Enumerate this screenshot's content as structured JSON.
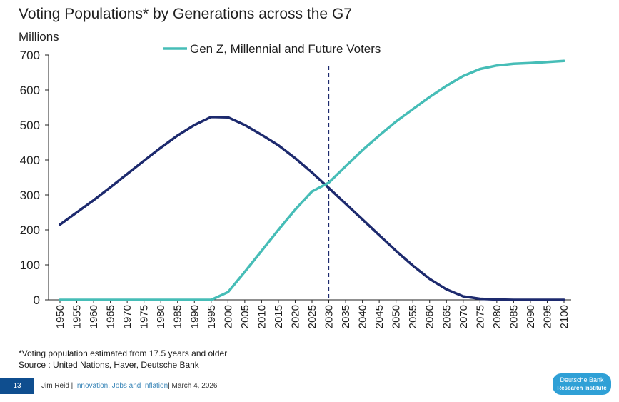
{
  "chart_data": {
    "type": "line",
    "title": "Voting Populations* by Generations across the G7",
    "ylabel": "Millions",
    "xlabel": "",
    "ylim": [
      0,
      700
    ],
    "yticks": [
      0,
      100,
      200,
      300,
      400,
      500,
      600,
      700
    ],
    "xlim": [
      1950,
      2100
    ],
    "xticks": [
      1950,
      1955,
      1960,
      1965,
      1970,
      1975,
      1980,
      1985,
      1990,
      1995,
      2000,
      2005,
      2010,
      2015,
      2020,
      2025,
      2030,
      2035,
      2040,
      2045,
      2050,
      2055,
      2060,
      2065,
      2070,
      2075,
      2080,
      2085,
      2090,
      2095,
      2100
    ],
    "vline_x": 2030,
    "legend": {
      "position": "top-center"
    },
    "series": [
      {
        "name": "",
        "color": "#1d2a6e",
        "x": [
          1950,
          1955,
          1960,
          1965,
          1970,
          1975,
          1980,
          1985,
          1990,
          1995,
          2000,
          2005,
          2010,
          2015,
          2020,
          2025,
          2030,
          2035,
          2040,
          2045,
          2050,
          2055,
          2060,
          2065,
          2070,
          2075,
          2080,
          2085,
          2090,
          2095,
          2100
        ],
        "y": [
          215,
          250,
          285,
          322,
          360,
          398,
          435,
          470,
          500,
          523,
          522,
          500,
          472,
          442,
          405,
          364,
          320,
          275,
          230,
          185,
          140,
          98,
          60,
          30,
          10,
          3,
          1,
          0,
          0,
          0,
          0
        ]
      },
      {
        "name": "Gen Z, Millennial and Future Voters",
        "color": "#46bdb7",
        "x": [
          1950,
          1955,
          1960,
          1965,
          1970,
          1975,
          1980,
          1985,
          1990,
          1995,
          2000,
          2005,
          2010,
          2015,
          2020,
          2025,
          2030,
          2035,
          2040,
          2045,
          2050,
          2055,
          2060,
          2065,
          2070,
          2075,
          2080,
          2085,
          2090,
          2095,
          2100
        ],
        "y": [
          0,
          0,
          0,
          0,
          0,
          0,
          0,
          0,
          0,
          0,
          22,
          80,
          140,
          200,
          258,
          310,
          335,
          382,
          428,
          470,
          510,
          545,
          580,
          612,
          640,
          660,
          670,
          675,
          677,
          680,
          683
        ]
      }
    ]
  },
  "footnotes": {
    "note": "*Voting population estimated from 17.5 years and older",
    "source": "Source : United Nations, Haver, Deutsche Bank"
  },
  "footer": {
    "page_number": "13",
    "author": "Jim Reid",
    "report": "Innovation, Jobs and Inflation",
    "date": "March 4, 2026",
    "logo_line1": "Deutsche Bank",
    "logo_line2": "Research Institute"
  }
}
